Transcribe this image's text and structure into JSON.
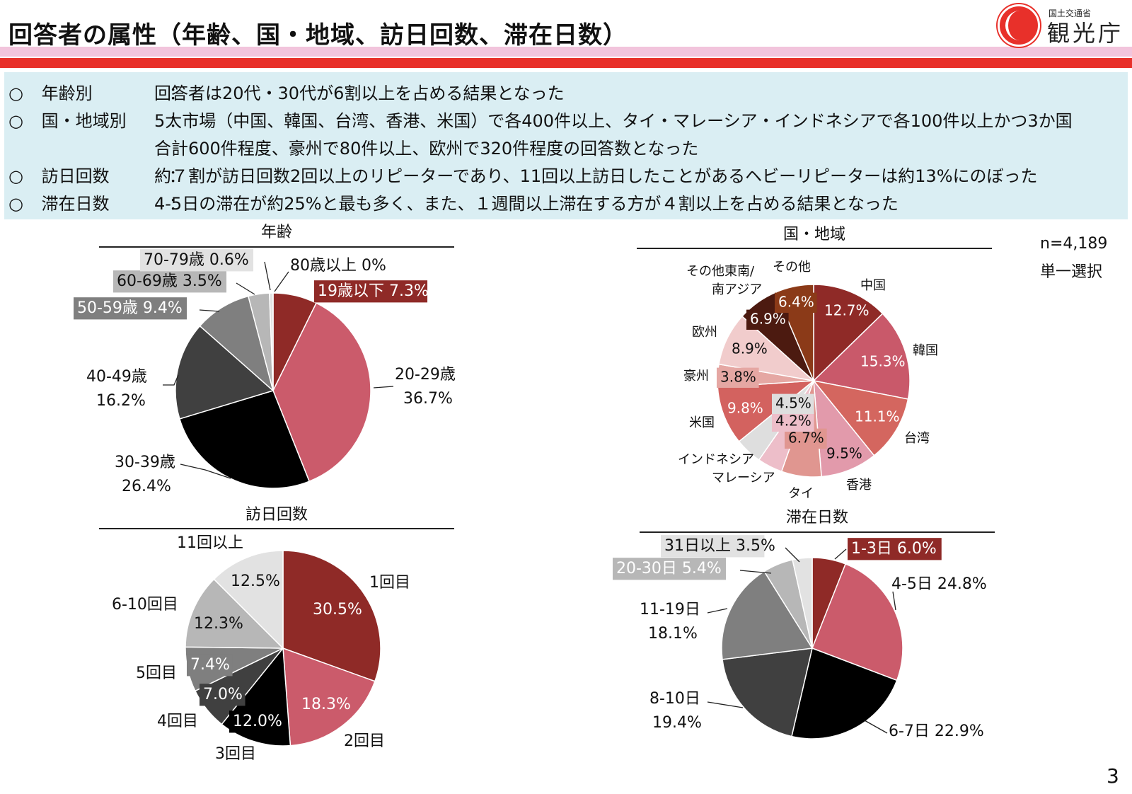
{
  "header": {
    "title": "回答者の属性（年齢、国・地域、訪日回数、滞在日数）",
    "logo_small": "国土交通省",
    "logo_big": "観光庁"
  },
  "summary": [
    {
      "marker": "○",
      "label": "年齢別",
      "colon": "：",
      "text": "回答者は20代・30代が6割以上を占める結果となった"
    },
    {
      "marker": "○",
      "label": "国・地域別",
      "colon": "：",
      "text": "5大市場（中国、韓国、台湾、香港、米国）で各400件以上、タイ・マレーシア・インドネシアで各100件以上かつ3か国",
      "text2": "合計600件程度、豪州で80件以上、欧州で320件程度の回答数となった"
    },
    {
      "marker": "○",
      "label": "訪日回数",
      "colon": "：",
      "text": "約７割が訪日回数2回以上のリピーターであり、11回以上訪日したことがあるヘビーリピーターは約13%にのぼった"
    },
    {
      "marker": "○",
      "label": "滞在日数",
      "colon": "：",
      "text": "4-5日の滞在が約25%と最も多く、また、１週間以上滞在する方が４割以上を占める結果となった"
    }
  ],
  "note": {
    "n": "n=4,189",
    "type": "単一選択"
  },
  "page_number": "3",
  "chart_data": [
    {
      "type": "pie",
      "title": "年齢",
      "slices": [
        {
          "label": "19歳以下",
          "value": 7.3,
          "pct": "7.3%",
          "color": "#8f2a27"
        },
        {
          "label": "20-29歳",
          "value": 36.7,
          "pct": "36.7%",
          "color": "#cb5b6b"
        },
        {
          "label": "30-39歳",
          "value": 26.4,
          "pct": "26.4%",
          "color": "#000000"
        },
        {
          "label": "40-49歳",
          "value": 16.2,
          "pct": "16.2%",
          "color": "#404040"
        },
        {
          "label": "50-59歳",
          "value": 9.4,
          "pct": "9.4%",
          "color": "#7f7f7f"
        },
        {
          "label": "60-69歳",
          "value": 3.5,
          "pct": "3.5%",
          "color": "#b7b7b7"
        },
        {
          "label": "70-79歳",
          "value": 0.6,
          "pct": "0.6%",
          "color": "#e2e2e2"
        },
        {
          "label": "80歳以上",
          "value": 0,
          "pct": "0%",
          "color": "#ffffff"
        }
      ]
    },
    {
      "type": "pie",
      "title": "国・地域",
      "slices": [
        {
          "label": "中国",
          "value": 12.7,
          "pct": "12.7%",
          "color": "#8f2a27"
        },
        {
          "label": "韓国",
          "value": 15.3,
          "pct": "15.3%",
          "color": "#c9596a"
        },
        {
          "label": "台湾",
          "value": 11.1,
          "pct": "11.1%",
          "color": "#d4665f"
        },
        {
          "label": "香港",
          "value": 9.5,
          "pct": "9.5%",
          "color": "#e29aab"
        },
        {
          "label": "タイ",
          "value": 6.7,
          "pct": "6.7%",
          "color": "#e09690"
        },
        {
          "label": "マレーシア",
          "value": 4.2,
          "pct": "4.2%",
          "color": "#edbec9"
        },
        {
          "label": "インドネシア",
          "value": 4.5,
          "pct": "4.5%",
          "color": "#dedede"
        },
        {
          "label": "米国",
          "value": 9.8,
          "pct": "9.8%",
          "color": "#d3625f"
        },
        {
          "label": "豪州",
          "value": 3.8,
          "pct": "3.8%",
          "color": "#e5a7a3"
        },
        {
          "label": "欧州",
          "value": 8.9,
          "pct": "8.9%",
          "color": "#f1cccc"
        },
        {
          "label": "その他東南/南アジア",
          "value": 6.9,
          "pct": "6.9%",
          "color": "#4c1a10"
        },
        {
          "label": "その他",
          "value": 6.4,
          "pct": "6.4%",
          "color": "#8b3a18"
        }
      ]
    },
    {
      "type": "pie",
      "title": "訪日回数",
      "slices": [
        {
          "label": "1回目",
          "value": 30.5,
          "pct": "30.5%",
          "color": "#8f2a27"
        },
        {
          "label": "2回目",
          "value": 18.3,
          "pct": "18.3%",
          "color": "#cb5b6b"
        },
        {
          "label": "3回目",
          "value": 12.0,
          "pct": "12.0%",
          "color": "#000000"
        },
        {
          "label": "4回目",
          "value": 7.0,
          "pct": "7.0%",
          "color": "#404040"
        },
        {
          "label": "5回目",
          "value": 7.4,
          "pct": "7.4%",
          "color": "#7f7f7f"
        },
        {
          "label": "6-10回目",
          "value": 12.3,
          "pct": "12.3%",
          "color": "#b7b7b7"
        },
        {
          "label": "11回以上",
          "value": 12.5,
          "pct": "12.5%",
          "color": "#e2e2e2"
        }
      ]
    },
    {
      "type": "pie",
      "title": "滞在日数",
      "slices": [
        {
          "label": "1-3日",
          "value": 6.0,
          "pct": "6.0%",
          "color": "#8f2a27"
        },
        {
          "label": "4-5日",
          "value": 24.8,
          "pct": "24.8%",
          "color": "#cb5b6b"
        },
        {
          "label": "6-7日",
          "value": 22.9,
          "pct": "22.9%",
          "color": "#000000"
        },
        {
          "label": "8-10日",
          "value": 19.4,
          "pct": "19.4%",
          "color": "#404040"
        },
        {
          "label": "11-19日",
          "value": 18.1,
          "pct": "18.1%",
          "color": "#7f7f7f"
        },
        {
          "label": "20-30日",
          "value": 5.4,
          "pct": "5.4%",
          "color": "#b7b7b7"
        },
        {
          "label": "31日以上",
          "value": 3.5,
          "pct": "3.5%",
          "color": "#e2e2e2"
        }
      ]
    }
  ]
}
